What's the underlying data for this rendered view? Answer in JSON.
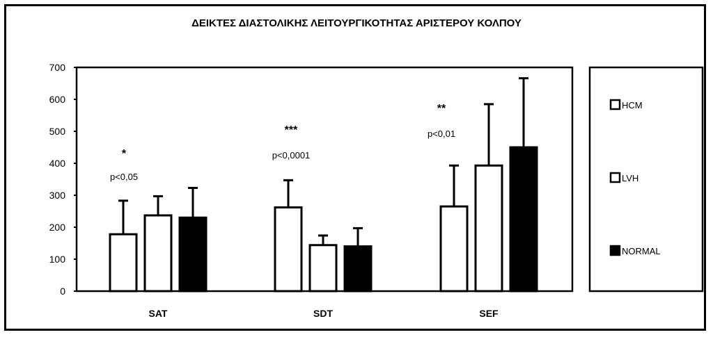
{
  "chart_data": {
    "type": "bar",
    "title": "ΔΕΙΚΤΕΣ ΔΙΑΣΤΟΛΙΚΗΣ ΛΕΙΤΟΥΡΓΙΚΟΤΗΤΑΣ ΑΡΙΣΤΕΡΟΥ ΚΟΛΠΟΥ",
    "xlabel": "",
    "ylabel": "",
    "ylim": [
      0,
      700
    ],
    "yticks": [
      "0",
      "100",
      "200",
      "300",
      "400",
      "500",
      "600",
      "700"
    ],
    "categories": [
      "SAT",
      "SDT",
      "SEF"
    ],
    "series": [
      {
        "name": "HCM",
        "values": [
          178,
          262,
          265
        ],
        "errors": [
          105,
          85,
          128
        ]
      },
      {
        "name": "LVH",
        "values": [
          237,
          144,
          393
        ],
        "errors": [
          60,
          30,
          192
        ]
      },
      {
        "name": "NORMAL",
        "values": [
          230,
          140,
          450
        ],
        "errors": [
          93,
          57,
          216
        ]
      }
    ],
    "annotations": [
      {
        "category": "SAT",
        "stars": "*",
        "p": "p<0,05"
      },
      {
        "category": "SDT",
        "stars": "***",
        "p": "p<0,0001"
      },
      {
        "category": "SEF",
        "stars": "**",
        "p": "p<0,01"
      }
    ],
    "legend_position": "right",
    "grid": false,
    "colors": {
      "HCM": "#ffffff",
      "LVH": "#ffffff",
      "NORMAL": "#000000",
      "stroke": "#000000"
    }
  }
}
